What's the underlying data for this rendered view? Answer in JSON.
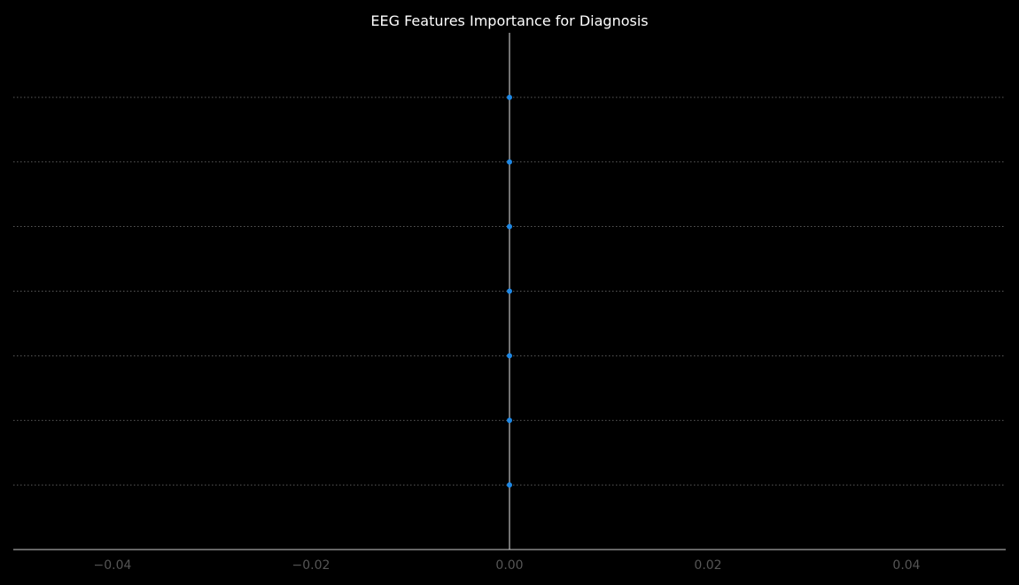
{
  "chart_data": {
    "type": "scatter",
    "title": "EEG Features Importance for Diagnosis",
    "xlabel": "",
    "ylabel": "",
    "xlim": [
      -0.05,
      0.05
    ],
    "ylim": [
      0,
      8
    ],
    "x_ticks": [
      -0.04,
      -0.02,
      0.0,
      0.02,
      0.04
    ],
    "x_tick_labels": [
      "−0.04",
      "−0.02",
      "0.00",
      "0.02",
      "0.04"
    ],
    "y_tick_labels": [],
    "grid": "horizontal dotted",
    "reference_line_x": 0.0,
    "points": [
      {
        "x": 0.0,
        "y": 7
      },
      {
        "x": 0.0,
        "y": 6
      },
      {
        "x": 0.0,
        "y": 5
      },
      {
        "x": 0.0,
        "y": 4
      },
      {
        "x": 0.0,
        "y": 3
      },
      {
        "x": 0.0,
        "y": 2
      },
      {
        "x": 0.0,
        "y": 1
      }
    ],
    "colors": {
      "background": "#000000",
      "point": "#1e88e5",
      "reference_line": "#999999",
      "grid": "#777777",
      "axis": "#cccccc",
      "title": "#ffffff",
      "tick_label": "#555555"
    }
  }
}
